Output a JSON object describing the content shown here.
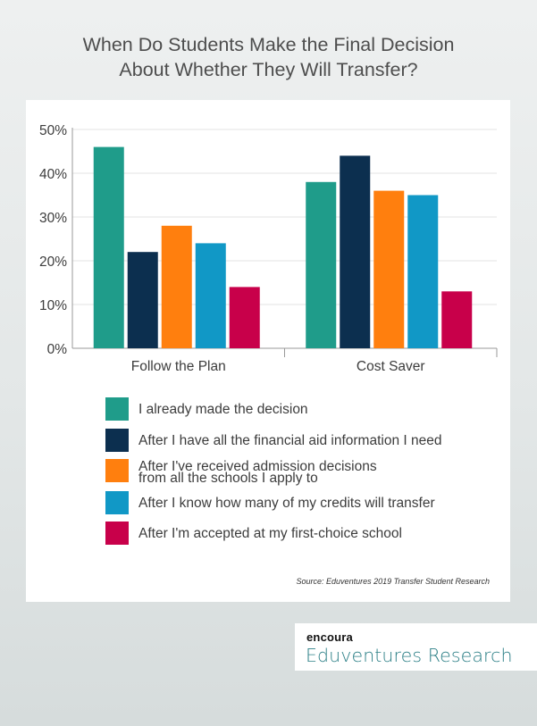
{
  "title_line1": "When Do Students Make the Final Decision",
  "title_line2": "About Whether They Will Transfer?",
  "chart_data": {
    "type": "bar",
    "categories": [
      "Follow the Plan",
      "Cost Saver"
    ],
    "series": [
      {
        "name": "I already made the decision",
        "values": [
          46,
          38
        ],
        "color": "#1f9c8a"
      },
      {
        "name": "After I have all the financial aid information I need",
        "values": [
          22,
          44
        ],
        "color": "#0c2f4f"
      },
      {
        "name": "After I've received admission decisions from all the schools I apply to",
        "values": [
          28,
          36
        ],
        "color": "#ff7f0e"
      },
      {
        "name": "After I know how many of my credits will transfer",
        "values": [
          24,
          35
        ],
        "color": "#1198c6"
      },
      {
        "name": "After I'm accepted at my first-choice school",
        "values": [
          14,
          13
        ],
        "color": "#c8004a"
      }
    ],
    "yticks": [
      "0%",
      "10%",
      "20%",
      "30%",
      "40%",
      "50%"
    ],
    "ylim": [
      0,
      50
    ],
    "unit": "%",
    "grid": true,
    "legend_position": "bottom"
  },
  "legend": {
    "item1": "I already made the decision",
    "item2": "After I have all the financial aid information I need",
    "item3_line1": "After I've received admission decisions",
    "item3_line2": "from all the schools I apply to",
    "item4": "After I know how many of my credits will transfer",
    "item5": "After I'm accepted at my first-choice school"
  },
  "source": "Source: Eduventures 2019 Transfer Student Research",
  "brand": {
    "top": "encoura",
    "bottom": "Eduventures Research",
    "color": "#2b7f86"
  }
}
